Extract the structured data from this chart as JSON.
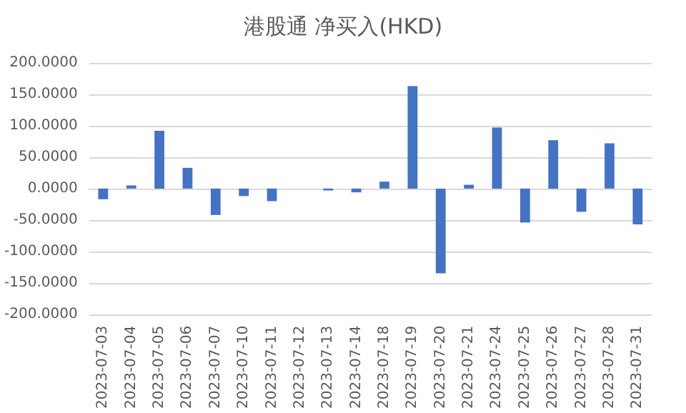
{
  "chart_data": {
    "type": "bar",
    "title": "港股通 净买入(HKD)",
    "categories": [
      "2023-07-03",
      "2023-07-04",
      "2023-07-05",
      "2023-07-06",
      "2023-07-07",
      "2023-07-10",
      "2023-07-11",
      "2023-07-12",
      "2023-07-13",
      "2023-07-14",
      "2023-07-18",
      "2023-07-19",
      "2023-07-20",
      "2023-07-21",
      "2023-07-24",
      "2023-07-25",
      "2023-07-26",
      "2023-07-27",
      "2023-07-28",
      "2023-07-31"
    ],
    "values": [
      -17,
      5,
      92,
      33,
      -42,
      -12,
      -20,
      0,
      -3,
      -6,
      11,
      163,
      -135,
      6,
      97,
      -54,
      77,
      -37,
      72,
      -57
    ],
    "color": "#4472c4",
    "ylim": [
      -200,
      200
    ],
    "yticks": [
      {
        "value": -200,
        "label": "-200.0000"
      },
      {
        "value": -150,
        "label": "-150.0000"
      },
      {
        "value": -100,
        "label": "-100.0000"
      },
      {
        "value": -50,
        "label": "-50.0000"
      },
      {
        "value": 0,
        "label": "0.0000"
      },
      {
        "value": 50,
        "label": "50.0000"
      },
      {
        "value": 100,
        "label": "100.0000"
      },
      {
        "value": 150,
        "label": "150.0000"
      },
      {
        "value": 200,
        "label": "200.0000"
      }
    ],
    "grid": "y"
  }
}
